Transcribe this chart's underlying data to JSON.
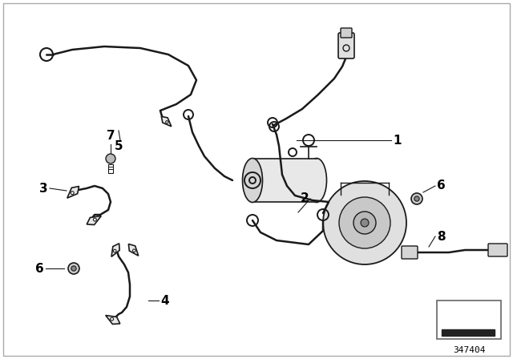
{
  "bg_color": "#ffffff",
  "line_color": "#1a1a1a",
  "part_number": "347404",
  "fig_width": 6.4,
  "fig_height": 4.48,
  "dpi": 100,
  "cable_lw": 1.8,
  "thin_lw": 1.0,
  "label_fontsize": 11,
  "pn_fontsize": 8
}
